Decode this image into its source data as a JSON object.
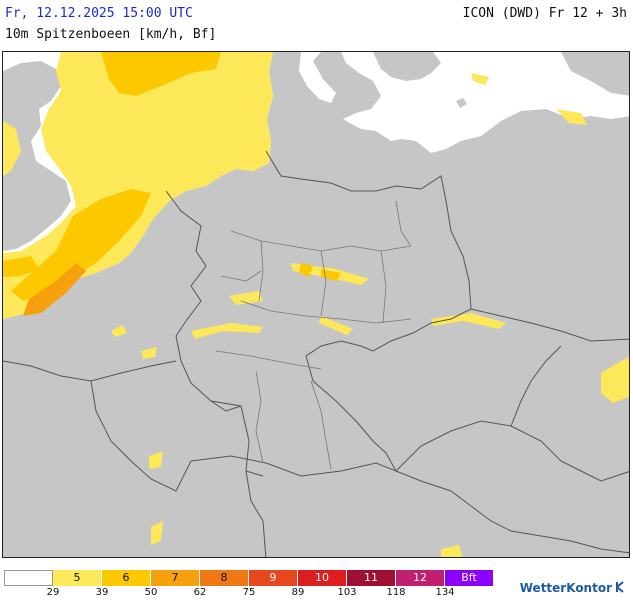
{
  "header": {
    "valid_time": "Fr, 12.12.2025 15:00 UTC",
    "parameter": "10m Spitzenboeen [km/h, Bf]",
    "model_run": "ICON (DWD) Fr 12 + 3h"
  },
  "legend": {
    "beaufort": [
      {
        "label": "",
        "color": "#ffffff"
      },
      {
        "label": "5",
        "color": "#fde85a"
      },
      {
        "label": "6",
        "color": "#fcc800"
      },
      {
        "label": "7",
        "color": "#f6a00e"
      },
      {
        "label": "8",
        "color": "#f07814"
      },
      {
        "label": "9",
        "color": "#e8461c"
      },
      {
        "label": "10",
        "color": "#dc1e1e"
      },
      {
        "label": "11",
        "color": "#a01032"
      },
      {
        "label": "12",
        "color": "#c01e6e"
      },
      {
        "label": "Bft",
        "color": "#8c00ff"
      }
    ],
    "kmh_ticks": [
      "29",
      "39",
      "50",
      "62",
      "75",
      "89",
      "103",
      "118",
      "134"
    ]
  },
  "brand": {
    "name": "WetterKontor"
  },
  "colors": {
    "land": "#c6c6c6",
    "sea": "#ffffff",
    "border": "#555555"
  }
}
